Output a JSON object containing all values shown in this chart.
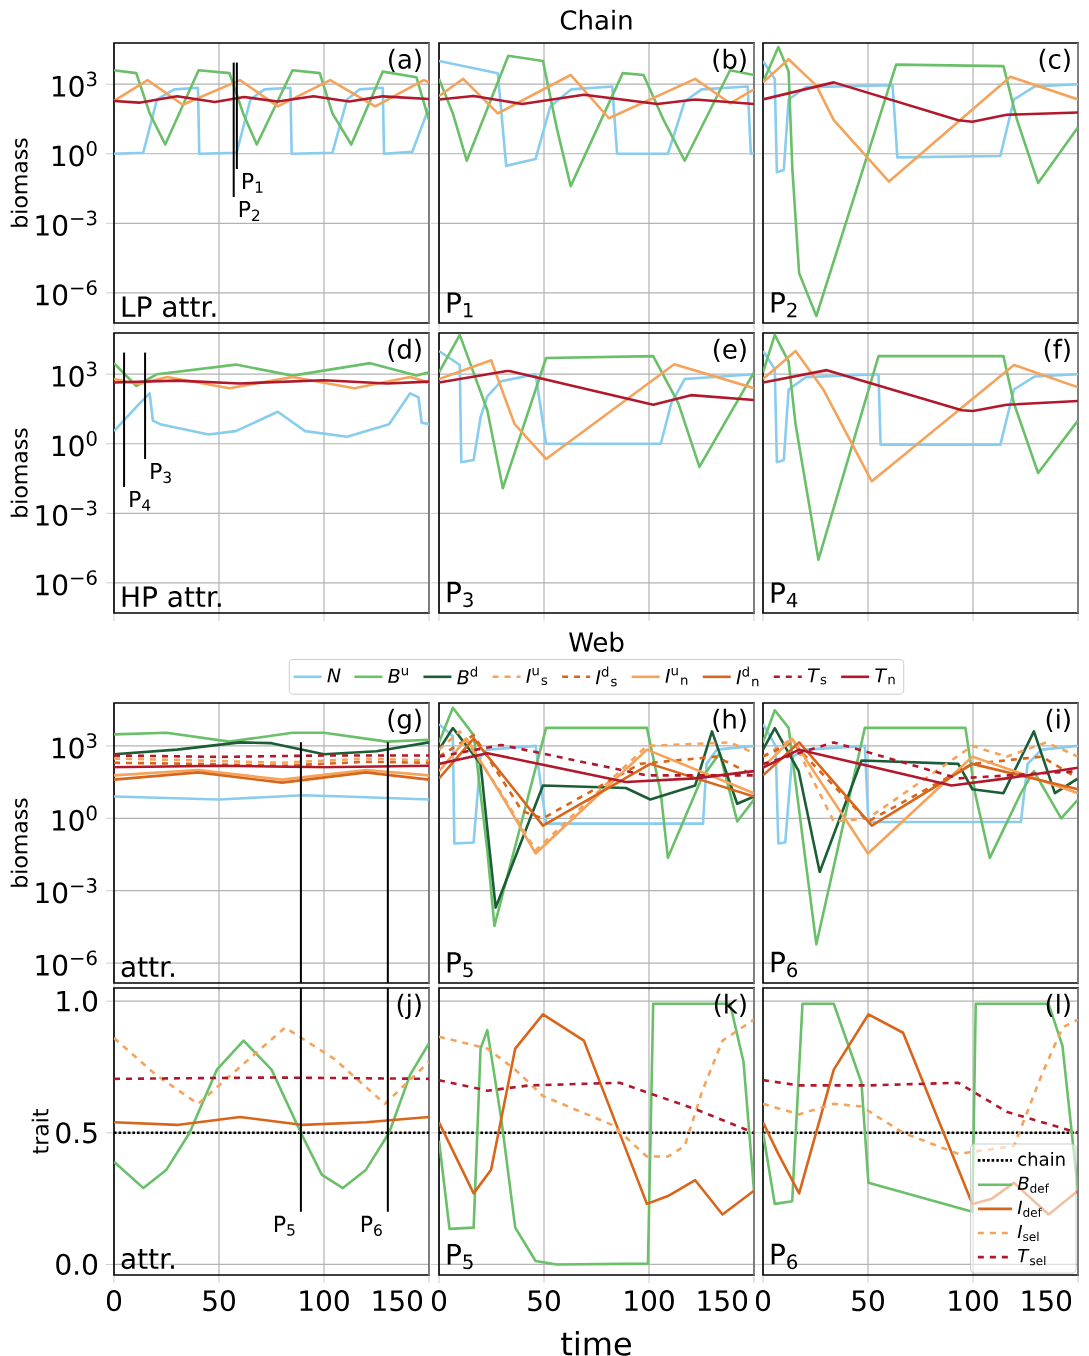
{
  "chart_data": [
    {
      "type": "line",
      "ylabel": "biomass",
      "annotations": [
        "(a)",
        "LP attr."
      ],
      "log": "y",
      "grid": true,
      "tick_labels": "y",
      "xlim": [
        0,
        150
      ],
      "ylim": [
        5e-08,
        60000.0
      ],
      "xticks": [
        0,
        50,
        100,
        150
      ],
      "yticks": [
        {
          "value": 1e-06,
          "label": "10$^{−6}$"
        },
        {
          "value": 0.001,
          "label": "10$^{−3}$"
        },
        {
          "value": 1,
          "label": "10$^{0}$"
        },
        {
          "value": 1000.0,
          "label": "10$^{3}$"
        }
      ],
      "ref_lines": [
        {
          "axis": "x",
          "value": 57,
          "label": "P$_{2}$"
        },
        {
          "axis": "x",
          "value": 58.5,
          "label": "P$_{1}$"
        }
      ],
      "series": [
        {
          "color": "#88ccee",
          "x": [
            0,
            13.9,
            20.5,
            28.7,
            40,
            40.6,
            58.4,
            65,
            71.6,
            84,
            84.6,
            104,
            111,
            117,
            128,
            128.6,
            142,
            150
          ],
          "values": [
            1,
            1.1,
            220,
            600,
            700,
            1,
            1.1,
            220,
            600,
            700,
            1,
            1.1,
            220,
            600,
            700,
            1,
            1.2,
            100
          ]
        },
        {
          "color": "#6abf69",
          "x": [
            0,
            10.6,
            17,
            24.4,
            40.3,
            55,
            61.5,
            68,
            85,
            98,
            104,
            113,
            128,
            144,
            150
          ],
          "values": [
            4000,
            3000,
            55,
            2.5,
            4000,
            3000,
            55,
            2.5,
            4000,
            3000,
            55,
            2.5,
            3500,
            2000,
            28
          ]
        },
        {
          "color": "#f5a35a",
          "x": [
            0,
            16,
            32.7,
            60,
            78,
            103,
            124.4,
            147.5,
            150
          ],
          "values": [
            190,
            1500,
            130,
            1500,
            110,
            1500,
            110,
            1500,
            1200
          ]
        },
        {
          "color": "#b2182b",
          "x": [
            0,
            12,
            30,
            48,
            62,
            78,
            95,
            112,
            128,
            150
          ],
          "values": [
            190,
            160,
            300,
            170,
            280,
            180,
            300,
            180,
            300,
            230
          ]
        }
      ]
    },
    {
      "type": "line",
      "title": "Chain",
      "annotations": [
        "(b)",
        "P$_{1}$"
      ],
      "log": "y",
      "grid": true,
      "tick_labels": false,
      "xlim": [
        0,
        150
      ],
      "ylim": [
        5e-08,
        60000.0
      ],
      "xticks": [
        0,
        50,
        100,
        150
      ],
      "yticks": [
        1e-06,
        0.001,
        1,
        1000.0
      ],
      "series": [
        {
          "color": "#88ccee",
          "x": [
            0,
            28,
            32,
            46,
            53,
            63,
            82.5,
            84.8,
            109,
            117,
            125,
            147,
            148.5,
            150
          ],
          "values": [
            10000,
            3000,
            0.3,
            0.6,
            110,
            600,
            800,
            1,
            1,
            180,
            600,
            800,
            1,
            1.1
          ]
        },
        {
          "color": "#6abf69",
          "x": [
            0,
            6.6,
            13.2,
            33,
            49.5,
            56,
            62.7,
            87.5,
            97.4,
            107,
            117,
            138.6,
            150
          ],
          "values": [
            1700,
            55,
            0.5,
            17000,
            10000,
            14,
            0.04,
            3000,
            2500,
            28,
            0.5,
            4000,
            2500
          ]
        },
        {
          "color": "#f5a35a",
          "x": [
            0,
            11.5,
            28,
            62.7,
            80.9,
            122,
            138.6,
            150
          ],
          "values": [
            310,
            1700,
            55,
            2500,
            34,
            1700,
            150,
            600
          ]
        },
        {
          "color": "#b2182b",
          "x": [
            0,
            16.5,
            39.6,
            69,
            104,
            122,
            150
          ],
          "values": [
            220,
            310,
            140,
            350,
            140,
            220,
            140
          ]
        }
      ]
    },
    {
      "type": "line",
      "annotations": [
        "(c)",
        "P$_{2}$"
      ],
      "log": "y",
      "grid": true,
      "tick_labels": false,
      "xlim": [
        0,
        150
      ],
      "ylim": [
        5e-08,
        60000.0
      ],
      "xticks": [
        0,
        50,
        100,
        150
      ],
      "yticks": [
        1e-06,
        0.001,
        1,
        1000.0
      ],
      "series": [
        {
          "color": "#88ccee",
          "x": [
            0,
            5.6,
            6.6,
            9.9,
            12.2,
            20.5,
            61.7,
            64,
            113,
            119.5,
            129.4,
            150
          ],
          "values": [
            10000,
            1700,
            0.16,
            0.2,
            220,
            750,
            900,
            0.7,
            0.8,
            220,
            800,
            1000
          ]
        },
        {
          "color": "#6abf69",
          "x": [
            0,
            7.3,
            12.2,
            14,
            17.2,
            25.4,
            63.4,
            114.5,
            121,
            131,
            150
          ],
          "values": [
            1200,
            40000,
            3500,
            0.2,
            7e-06,
            1e-07,
            7000,
            6000,
            28,
            0.055,
            14
          ]
        },
        {
          "color": "#f5a35a",
          "x": [
            0,
            12.2,
            25.4,
            33.7,
            60,
            117.8,
            150
          ],
          "values": [
            1200,
            12000,
            870,
            28,
            0.063,
            2100,
            220
          ]
        },
        {
          "color": "#b2182b",
          "x": [
            0,
            33.7,
            93,
            99.7,
            116,
            150
          ],
          "values": [
            220,
            1200,
            28,
            24,
            48,
            60
          ]
        }
      ]
    },
    {
      "type": "line",
      "ylabel": "biomass",
      "annotations": [
        "(d)",
        "HP attr."
      ],
      "log": "y",
      "grid": true,
      "tick_labels": "y",
      "xlim": [
        0,
        150
      ],
      "ylim": [
        5e-08,
        60000.0
      ],
      "xticks": [
        0,
        50,
        100,
        150
      ],
      "yticks": [
        {
          "value": 1e-06,
          "label": "10$^{−6}$"
        },
        {
          "value": 0.001,
          "label": "10$^{−3}$"
        },
        {
          "value": 1,
          "label": "10$^{0}$"
        },
        {
          "value": 1000.0,
          "label": "10$^{3}$"
        }
      ],
      "ref_lines": [
        {
          "axis": "x",
          "value": 4.8,
          "label": "P$_{4}$"
        },
        {
          "axis": "x",
          "value": 14.8,
          "label": "P$_{3}$"
        }
      ],
      "series": [
        {
          "color": "#88ccee",
          "x": [
            0,
            12.2,
            17,
            18.5,
            22,
            45,
            58,
            78,
            91,
            111,
            131,
            141,
            145,
            146.5,
            150
          ],
          "values": [
            3.5,
            55,
            150,
            10,
            7,
            2.5,
            3.5,
            24,
            3.5,
            2,
            7,
            150,
            100,
            8,
            7
          ]
        },
        {
          "color": "#6abf69",
          "x": [
            0,
            10.6,
            20.5,
            58,
            85,
            122,
            144,
            150
          ],
          "values": [
            3000,
            310,
            1000,
            2600,
            870,
            3000,
            870,
            1200
          ]
        },
        {
          "color": "#f5a35a",
          "x": [
            0,
            12,
            25.4,
            55,
            85,
            114.5,
            141,
            150
          ],
          "values": [
            620,
            380,
            760,
            250,
            760,
            250,
            760,
            430
          ]
        },
        {
          "color": "#b2182b",
          "x": [
            0,
            30,
            60,
            100,
            130,
            150
          ],
          "values": [
            440,
            530,
            400,
            550,
            400,
            480
          ]
        }
      ]
    },
    {
      "type": "line",
      "annotations": [
        "(e)",
        "P$_{3}$"
      ],
      "log": "y",
      "grid": true,
      "tick_labels": false,
      "xlim": [
        0,
        150
      ],
      "ylim": [
        5e-08,
        60000.0
      ],
      "xticks": [
        0,
        50,
        100,
        150
      ],
      "yticks": [
        1e-06,
        0.001,
        1,
        1000.0
      ],
      "series": [
        {
          "color": "#88ccee",
          "x": [
            0,
            9.9,
            10.6,
            16.5,
            19.8,
            23,
            29.7,
            46,
            51,
            105.6,
            110.6,
            117,
            150
          ],
          "values": [
            10000,
            2500,
            0.16,
            0.2,
            14,
            110,
            500,
            1000,
            1,
            1,
            55,
            620,
            1000
          ]
        },
        {
          "color": "#6abf69",
          "x": [
            0,
            9.9,
            23,
            30.4,
            51,
            102,
            114,
            124,
            150
          ],
          "values": [
            1200,
            50000,
            28,
            0.012,
            5000,
            6000,
            55,
            0.1,
            1200
          ]
        },
        {
          "color": "#f5a35a",
          "x": [
            0,
            24.8,
            36,
            51,
            112,
            150
          ],
          "values": [
            620,
            4000,
            7,
            0.22,
            2700,
            250
          ]
        },
        {
          "color": "#b2182b",
          "x": [
            0,
            33,
            102,
            120,
            150
          ],
          "values": [
            440,
            1400,
            48,
            125,
            77
          ]
        }
      ]
    },
    {
      "type": "line",
      "annotations": [
        "(f)",
        "P$_{4}$"
      ],
      "log": "y",
      "grid": true,
      "tick_labels": false,
      "xlim": [
        0,
        150
      ],
      "ylim": [
        5e-08,
        60000.0
      ],
      "xticks": [
        0,
        50,
        100,
        150
      ],
      "yticks": [
        1e-06,
        0.001,
        1,
        1000.0
      ],
      "series": [
        {
          "color": "#88ccee",
          "x": [
            0,
            5.6,
            6.6,
            9.9,
            12.2,
            20.5,
            55,
            56,
            113,
            119.5,
            129.4,
            150
          ],
          "values": [
            10000,
            1700,
            0.16,
            0.2,
            220,
            750,
            1000,
            0.9,
            0.9,
            220,
            800,
            1000
          ]
        },
        {
          "color": "#6abf69",
          "x": [
            0,
            5.6,
            12.2,
            15.5,
            26.4,
            55,
            114.5,
            119.5,
            131,
            150
          ],
          "values": [
            1200,
            50000,
            3500,
            7,
            1e-05,
            6000,
            6000,
            55,
            0.055,
            10
          ]
        },
        {
          "color": "#f5a35a",
          "x": [
            0,
            15.5,
            28.7,
            51.8,
            119.5,
            150
          ],
          "values": [
            620,
            10000,
            220,
            0.024,
            2500,
            270
          ]
        },
        {
          "color": "#b2182b",
          "x": [
            0,
            30.4,
            94.7,
            100,
            116,
            150
          ],
          "values": [
            440,
            1500,
            28,
            26,
            48,
            70
          ]
        }
      ]
    },
    {
      "type": "line",
      "ylabel": "biomass",
      "annotations": [
        "(g)",
        "attr."
      ],
      "log": "y",
      "grid": true,
      "tick_labels": "y",
      "xlim": [
        0,
        150
      ],
      "ylim": [
        1.5e-07,
        60000.0
      ],
      "xticks": [
        0,
        50,
        100,
        150
      ],
      "yticks": [
        {
          "value": 1e-06,
          "label": "10$^{−6}$"
        },
        {
          "value": 0.001,
          "label": "10$^{−3}$"
        },
        {
          "value": 1,
          "label": "10$^{0}$"
        },
        {
          "value": 1000.0,
          "label": "10$^{3}$"
        }
      ],
      "ref_lines": [
        {
          "axis": "x",
          "value": 89
        },
        {
          "axis": "x",
          "value": 130.4
        }
      ],
      "series": [
        {
          "color": "#88ccee",
          "x": [
            0,
            50,
            90,
            110,
            150
          ],
          "values": [
            8,
            6,
            9,
            8,
            6
          ]
        },
        {
          "color": "#6abf69",
          "x": [
            0,
            25,
            55,
            85,
            100,
            130,
            150
          ],
          "values": [
            3000,
            3500,
            1500,
            3500,
            3500,
            1500,
            1800
          ]
        },
        {
          "color": "#1b5e35",
          "x": [
            0,
            30,
            60,
            75,
            100,
            125,
            150
          ],
          "values": [
            450,
            700,
            1400,
            1300,
            450,
            600,
            1400
          ]
        },
        {
          "color": "#f5a35a",
          "line_style": "dashed",
          "x": [
            0,
            40,
            80,
            120,
            150
          ],
          "values": [
            300,
            250,
            200,
            300,
            250
          ]
        },
        {
          "color": "#d8651a",
          "line_style": "dashed",
          "x": [
            0,
            40,
            80,
            120,
            150
          ],
          "values": [
            200,
            180,
            150,
            220,
            200
          ]
        },
        {
          "color": "#f5a35a",
          "x": [
            0,
            40,
            80,
            120,
            150
          ],
          "values": [
            60,
            100,
            40,
            100,
            60
          ]
        },
        {
          "color": "#d8651a",
          "x": [
            0,
            40,
            80,
            120,
            150
          ],
          "values": [
            40,
            80,
            30,
            80,
            40
          ]
        },
        {
          "color": "#b2182b",
          "line_style": "dashed",
          "x": [
            0,
            50,
            100,
            150
          ],
          "values": [
            400,
            350,
            400,
            400
          ]
        },
        {
          "color": "#b2182b",
          "x": [
            0,
            50,
            100,
            150
          ],
          "values": [
            130,
            150,
            130,
            150
          ]
        }
      ]
    },
    {
      "type": "line",
      "title": "Web",
      "legend": "top",
      "annotations": [
        "(h)",
        "P$_{5}$"
      ],
      "log": "y",
      "grid": true,
      "tick_labels": false,
      "xlim": [
        0,
        150
      ],
      "ylim": [
        1.5e-07,
        60000.0
      ],
      "xticks": [
        0,
        50,
        100,
        150
      ],
      "yticks": [
        1e-06,
        0.001,
        1,
        1000.0
      ],
      "series": [
        {
          "name": "*N*",
          "color": "#88ccee",
          "x": [
            0,
            6.6,
            7.3,
            16.5,
            19.8,
            23,
            46,
            51,
            125.7,
            127.4,
            132.3,
            150
          ],
          "values": [
            8000,
            2500,
            0.09,
            0.1,
            360,
            700,
            1000,
            0.6,
            0.6,
            180,
            700,
            1000
          ]
        },
        {
          "name": "*B*$^{u}$",
          "color": "#6abf69",
          "x": [
            0,
            6.6,
            16.5,
            23,
            26.4,
            51,
            99,
            105.6,
            109,
            125,
            133.7,
            138.6,
            142,
            150
          ],
          "values": [
            1400,
            38000,
            2800,
            0.047,
            3.5e-05,
            5600,
            5600,
            11,
            0.023,
            45,
            500,
            11,
            0.74,
            6
          ]
        },
        {
          "name": "*B*$^{d}$",
          "color": "#1b5e35",
          "x": [
            0,
            6.6,
            19.8,
            23,
            27,
            49.5,
            89,
            100.6,
            122,
            130,
            142,
            150
          ],
          "values": [
            700,
            5500,
            180,
            0.37,
            0.0002,
            23,
            18,
            6,
            23,
            4000,
            4,
            8
          ]
        },
        {
          "name": "*I*$^{u}$$_{s}$",
          "color": "#f5a35a",
          "line_style": "dashed",
          "x": [
            0,
            9.9,
            29.7,
            46,
            99,
            138.6,
            150
          ],
          "values": [
            700,
            4000,
            11,
            0.047,
            1000,
            1400,
            500
          ]
        },
        {
          "name": "*I*$^{d}$$_{s}$",
          "color": "#d8651a",
          "line_style": "dashed",
          "x": [
            0,
            16.5,
            39.6,
            49.5,
            95.7,
            132,
            150
          ],
          "values": [
            360,
            2800,
            2,
            1,
            180,
            360,
            60
          ]
        },
        {
          "name": "*I*$^{u}$$_{n}$",
          "color": "#f5a35a",
          "x": [
            0,
            13.2,
            31,
            46,
            99,
            150
          ],
          "values": [
            90,
            2000,
            6,
            0.035,
            700,
            11
          ]
        },
        {
          "name": "*I*$^{d}$$_{n}$",
          "color": "#d8651a",
          "x": [
            0,
            16.5,
            49.5,
            100.6,
            150
          ],
          "values": [
            45,
            2000,
            0.5,
            180,
            8
          ]
        },
        {
          "name": "*T*$_{s}$",
          "color": "#b2182b",
          "line_style": "dashed",
          "x": [
            0,
            29.7,
            99,
            150
          ],
          "values": [
            360,
            1100,
            60,
            60
          ]
        },
        {
          "name": "*T*$_{n}$",
          "color": "#b2182b",
          "x": [
            0,
            23,
            89,
            122,
            150
          ],
          "values": [
            180,
            500,
            32,
            45,
            90
          ]
        }
      ]
    },
    {
      "type": "line",
      "annotations": [
        "(i)",
        "P$_{6}$"
      ],
      "log": "y",
      "grid": true,
      "tick_labels": false,
      "xlim": [
        0,
        150
      ],
      "ylim": [
        1.5e-07,
        60000.0
      ],
      "xticks": [
        0,
        50,
        100,
        150
      ],
      "yticks": [
        1e-06,
        0.001,
        1,
        1000.0
      ],
      "series": [
        {
          "color": "#88ccee",
          "x": [
            0,
            6,
            7.3,
            10.6,
            13.9,
            20.5,
            48.5,
            50.2,
            122.8,
            126,
            132.7,
            150
          ],
          "values": [
            8000,
            1000,
            0.09,
            0.1,
            360,
            700,
            1000,
            0.7,
            0.7,
            180,
            700,
            1000
          ]
        },
        {
          "color": "#6abf69",
          "x": [
            0,
            5.6,
            12.2,
            20.5,
            25.4,
            48.5,
            96.4,
            101,
            108,
            122.8,
            129,
            142,
            150
          ],
          "values": [
            1400,
            30000,
            5600,
            0.012,
            6e-06,
            5600,
            5600,
            11,
            0.023,
            11,
            90,
            1,
            6
          ]
        },
        {
          "color": "#1b5e35",
          "x": [
            0,
            5.6,
            17,
            27,
            46.9,
            93,
            99.7,
            114.5,
            129,
            139,
            150
          ],
          "values": [
            700,
            5500,
            90,
            0.006,
            250,
            180,
            16,
            11,
            4000,
            11,
            45
          ]
        },
        {
          "color": "#f5a35a",
          "line_style": "dashed",
          "x": [
            0,
            13.9,
            33.7,
            50,
            99.7,
            116,
            135,
            150
          ],
          "values": [
            360,
            2000,
            0.74,
            1,
            1000,
            360,
            1400,
            360
          ]
        },
        {
          "color": "#d8651a",
          "line_style": "dashed",
          "x": [
            0,
            13.9,
            50,
            99.7,
            132.7,
            150
          ],
          "values": [
            360,
            1400,
            0.74,
            180,
            360,
            45
          ]
        },
        {
          "color": "#f5a35a",
          "x": [
            0,
            13.9,
            50,
            99.7,
            150
          ],
          "values": [
            130,
            2000,
            0.035,
            360,
            11
          ]
        },
        {
          "color": "#d8651a",
          "x": [
            0,
            17.2,
            51.8,
            99.7,
            150
          ],
          "values": [
            60,
            1400,
            0.5,
            180,
            16
          ]
        },
        {
          "color": "#b2182b",
          "line_style": "dashed",
          "x": [
            0,
            33.7,
            93,
            150
          ],
          "values": [
            180,
            1400,
            45,
            90
          ]
        },
        {
          "color": "#b2182b",
          "x": [
            0,
            17.2,
            89.8,
            116,
            150
          ],
          "values": [
            125,
            700,
            23,
            45,
            125
          ]
        }
      ]
    },
    {
      "type": "line",
      "ylabel": "trait",
      "annotations": [
        "(j)",
        "attr."
      ],
      "grid": true,
      "xlim": [
        0,
        150
      ],
      "ylim": [
        -0.04,
        1.05
      ],
      "xticks": [
        0,
        50,
        100,
        150
      ],
      "yticks": [
        {
          "value": 0,
          "label": "0.0"
        },
        {
          "value": 0.5,
          "label": "0.5"
        },
        {
          "value": 1,
          "label": "1.0"
        }
      ],
      "ref_lines": [
        {
          "axis": "x",
          "value": 89,
          "label": "P$_{5}$"
        },
        {
          "axis": "x",
          "value": 130.4,
          "label": "P$_{6}$"
        }
      ],
      "series": [
        {
          "color": "#000000",
          "line_style": "dotted",
          "x": [
            0,
            150
          ],
          "values": [
            0.5,
            0.5
          ]
        },
        {
          "color": "#6abf69",
          "x": [
            0,
            14,
            25,
            36,
            49,
            61.7,
            75,
            89,
            99,
            109,
            120,
            131,
            141,
            150
          ],
          "values": [
            0.39,
            0.29,
            0.36,
            0.5,
            0.74,
            0.85,
            0.74,
            0.5,
            0.34,
            0.29,
            0.36,
            0.5,
            0.72,
            0.84
          ]
        },
        {
          "color": "#d8651a",
          "x": [
            0,
            30,
            60,
            90,
            120,
            150
          ],
          "values": [
            0.54,
            0.53,
            0.56,
            0.53,
            0.54,
            0.56
          ]
        },
        {
          "color": "#f5a35a",
          "line_style": "dashed",
          "x": [
            0,
            20,
            40,
            60,
            81.5,
            105,
            129,
            150
          ],
          "values": [
            0.86,
            0.72,
            0.61,
            0.75,
            0.9,
            0.78,
            0.61,
            0.77
          ]
        },
        {
          "color": "#b2182b",
          "line_style": "dashed",
          "x": [
            0,
            75,
            150
          ],
          "values": [
            0.705,
            0.71,
            0.705
          ]
        }
      ]
    },
    {
      "type": "line",
      "xlabel": "time",
      "annotations": [
        "(k)",
        "P$_{5}$"
      ],
      "grid": true,
      "tick_labels": "x",
      "xlim": [
        0,
        150
      ],
      "ylim": [
        -0.04,
        1.05
      ],
      "xticks": [
        0,
        50,
        100,
        150
      ],
      "yticks": [
        0,
        0.5,
        1
      ],
      "series": [
        {
          "color": "#000000",
          "line_style": "dotted",
          "x": [
            0,
            150
          ],
          "values": [
            0.5,
            0.5
          ]
        },
        {
          "color": "#6abf69",
          "x": [
            0,
            5,
            16.5,
            19.8,
            23,
            29.7,
            36.3,
            46,
            56,
            99.5,
            102,
            138.6,
            145,
            150
          ],
          "values": [
            0.47,
            0.135,
            0.14,
            0.82,
            0.89,
            0.55,
            0.14,
            0.013,
            0.0,
            0.003,
            0.99,
            0.99,
            0.77,
            0.28
          ]
        },
        {
          "color": "#d8651a",
          "x": [
            0,
            16.5,
            24.8,
            36.3,
            49.5,
            69,
            99,
            109,
            122,
            135,
            150
          ],
          "values": [
            0.54,
            0.27,
            0.36,
            0.82,
            0.95,
            0.85,
            0.23,
            0.26,
            0.32,
            0.19,
            0.28
          ]
        },
        {
          "color": "#f5a35a",
          "line_style": "dashed",
          "x": [
            0,
            23,
            36.3,
            49.5,
            82.5,
            99,
            109,
            117,
            125.4,
            135,
            150
          ],
          "values": [
            0.865,
            0.82,
            0.74,
            0.64,
            0.53,
            0.41,
            0.41,
            0.45,
            0.66,
            0.85,
            0.93
          ]
        },
        {
          "color": "#b2182b",
          "line_style": "dashed",
          "x": [
            0,
            23,
            43,
            86,
            122,
            150
          ],
          "values": [
            0.7,
            0.66,
            0.68,
            0.69,
            0.59,
            0.5
          ]
        }
      ]
    },
    {
      "type": "line",
      "legend": "bottom right",
      "annotations": [
        "(l)",
        "P$_{6}$"
      ],
      "grid": true,
      "tick_labels": "x",
      "xlim": [
        0,
        150
      ],
      "ylim": [
        -0.04,
        1.05
      ],
      "xticks": [
        0,
        50,
        100,
        150
      ],
      "yticks": [
        0,
        0.5,
        1
      ],
      "series": [
        {
          "name": "chain",
          "color": "#000000",
          "line_style": "dotted",
          "x": [
            0,
            150
          ],
          "values": [
            0.5,
            0.5
          ]
        },
        {
          "name": "*B*$_{def}$",
          "color": "#6abf69",
          "x": [
            0,
            5.6,
            13.9,
            18.8,
            33.7,
            46.9,
            50.2,
            99.7,
            101.3,
            136,
            142.6,
            150
          ],
          "values": [
            0.5,
            0.23,
            0.24,
            0.99,
            0.99,
            0.69,
            0.31,
            0.2,
            0.99,
            0.99,
            0.83,
            0.28
          ]
        },
        {
          "name": "*I*$_{def}$",
          "color": "#d8651a",
          "x": [
            0,
            7.3,
            17.2,
            33.7,
            50.2,
            66.7,
            99.7,
            109,
            119.5,
            136,
            150
          ],
          "values": [
            0.54,
            0.42,
            0.27,
            0.74,
            0.95,
            0.88,
            0.23,
            0.25,
            0.31,
            0.19,
            0.28
          ]
        },
        {
          "name": "*I*$_{sel}$",
          "color": "#f5a35a",
          "line_style": "dashed",
          "x": [
            0,
            17.2,
            33.7,
            46.9,
            66.7,
            93,
            119.5,
            132.7,
            142.6,
            150
          ],
          "values": [
            0.61,
            0.57,
            0.61,
            0.6,
            0.5,
            0.42,
            0.45,
            0.72,
            0.9,
            0.93
          ]
        },
        {
          "name": "*T*$_{sel}$",
          "color": "#b2182b",
          "line_style": "dashed",
          "x": [
            0,
            17.2,
            50,
            93,
            116,
            150
          ],
          "values": [
            0.7,
            0.68,
            0.68,
            0.69,
            0.58,
            0.5
          ]
        }
      ]
    }
  ]
}
